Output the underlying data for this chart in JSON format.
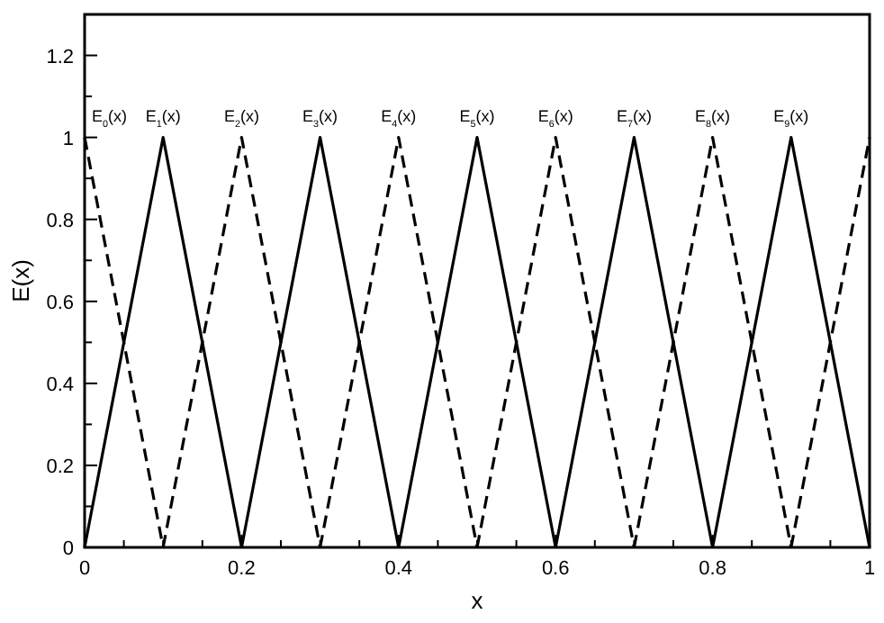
{
  "chart_data": {
    "type": "line",
    "xlabel": "x",
    "ylabel": "E(x)",
    "xlim": [
      0,
      1
    ],
    "ylim": [
      0,
      1.3
    ],
    "xticks": [
      0,
      {
        "value": 0.05,
        "label": null
      },
      {
        "value": 0.1,
        "label": null
      },
      {
        "value": 0.15,
        "label": null
      },
      0.2,
      {
        "value": 0.25,
        "label": null
      },
      {
        "value": 0.3,
        "label": null
      },
      {
        "value": 0.35,
        "label": null
      },
      0.4,
      {
        "value": 0.45,
        "label": null
      },
      {
        "value": 0.5,
        "label": null
      },
      {
        "value": 0.55,
        "label": null
      },
      0.6,
      {
        "value": 0.65,
        "label": null
      },
      {
        "value": 0.7,
        "label": null
      },
      {
        "value": 0.75,
        "label": null
      },
      0.8,
      {
        "value": 0.85,
        "label": null
      },
      {
        "value": 0.9,
        "label": null
      },
      {
        "value": 0.95,
        "label": null
      },
      1
    ],
    "yticks": [
      0,
      {
        "value": 0.1,
        "label": null
      },
      0.2,
      {
        "value": 0.3,
        "label": null
      },
      0.4,
      {
        "value": 0.5,
        "label": null
      },
      0.6,
      {
        "value": 0.7,
        "label": null
      },
      0.8,
      {
        "value": 0.9,
        "label": null
      },
      1,
      {
        "value": 1.1,
        "label": null
      },
      1.2
    ],
    "grid": false,
    "marker": "none",
    "series": [
      {
        "name": "E$_{0}$(x)",
        "color": "#000000",
        "line_style": "dashed",
        "x": [
          0,
          0.1
        ],
        "values": [
          1,
          0
        ]
      },
      {
        "name": "E$_{1}$(x)",
        "color": "#000000",
        "line_style": "solid",
        "x": [
          0,
          0.1,
          0.2
        ],
        "values": [
          0,
          1,
          0
        ]
      },
      {
        "name": "E$_{2}$(x)",
        "color": "#000000",
        "line_style": "dashed",
        "x": [
          0.1,
          0.2,
          0.3
        ],
        "values": [
          0,
          1,
          0
        ]
      },
      {
        "name": "E$_{3}$(x)",
        "color": "#000000",
        "line_style": "solid",
        "x": [
          0.2,
          0.3,
          0.4
        ],
        "values": [
          0,
          1,
          0
        ]
      },
      {
        "name": "E$_{4}$(x)",
        "color": "#000000",
        "line_style": "dashed",
        "x": [
          0.3,
          0.4,
          0.5
        ],
        "values": [
          0,
          1,
          0
        ]
      },
      {
        "name": "E$_{5}$(x)",
        "color": "#000000",
        "line_style": "solid",
        "x": [
          0.4,
          0.5,
          0.6
        ],
        "values": [
          0,
          1,
          0
        ]
      },
      {
        "name": "E$_{6}$(x)",
        "color": "#000000",
        "line_style": "dashed",
        "x": [
          0.5,
          0.6,
          0.7
        ],
        "values": [
          0,
          1,
          0
        ]
      },
      {
        "name": "E$_{7}$(x)",
        "color": "#000000",
        "line_style": "solid",
        "x": [
          0.6,
          0.7,
          0.8
        ],
        "values": [
          0,
          1,
          0
        ]
      },
      {
        "name": "E$_{8}$(x)",
        "color": "#000000",
        "line_style": "dashed",
        "x": [
          0.7,
          0.8,
          0.9
        ],
        "values": [
          0,
          1,
          0
        ]
      },
      {
        "name": "E$_{9}$(x)",
        "color": "#000000",
        "line_style": "solid",
        "x": [
          0.8,
          0.9,
          1
        ],
        "values": [
          0,
          1,
          0
        ]
      },
      {
        "color": "#000000",
        "line_style": "dashed",
        "x": [
          0.9,
          1
        ],
        "values": [
          0,
          1
        ]
      }
    ]
  }
}
